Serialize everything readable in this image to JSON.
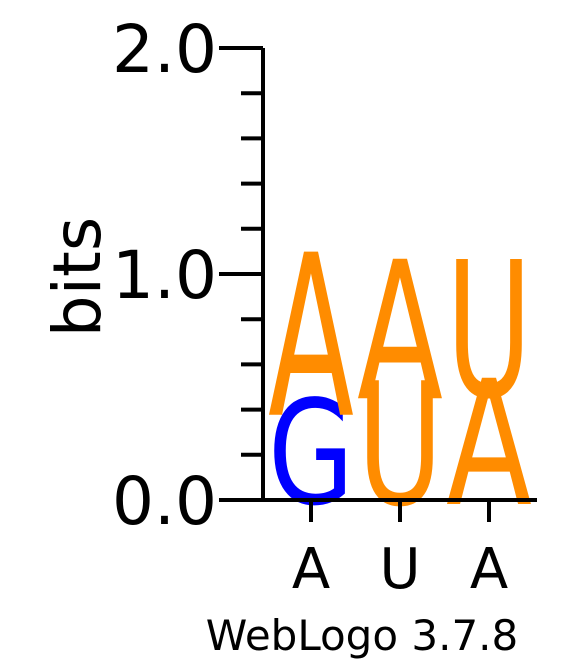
{
  "chart_data": {
    "type": "sequence-logo",
    "ylabel": "bits",
    "ylim": [
      0,
      2.0
    ],
    "yticks": [
      {
        "value": 0.0,
        "label": "0.0"
      },
      {
        "value": 1.0,
        "label": "1.0"
      },
      {
        "value": 2.0,
        "label": "2.0"
      }
    ],
    "minor_tick_step": 0.2,
    "positions": [
      {
        "label": "A",
        "stack": [
          {
            "letter": "G",
            "bits": 0.4,
            "color": "#0000ff"
          },
          {
            "letter": "A",
            "bits": 0.62,
            "color": "#ff8c00"
          }
        ]
      },
      {
        "label": "U",
        "stack": [
          {
            "letter": "U",
            "bits": 0.47,
            "color": "#ff8c00"
          },
          {
            "letter": "A",
            "bits": 0.53,
            "color": "#ff8c00"
          }
        ]
      },
      {
        "label": "A",
        "stack": [
          {
            "letter": "A",
            "bits": 0.48,
            "color": "#ff8c00"
          },
          {
            "letter": "U",
            "bits": 0.52,
            "color": "#ff8c00"
          }
        ]
      }
    ],
    "footer": "WebLogo 3.7.8"
  }
}
